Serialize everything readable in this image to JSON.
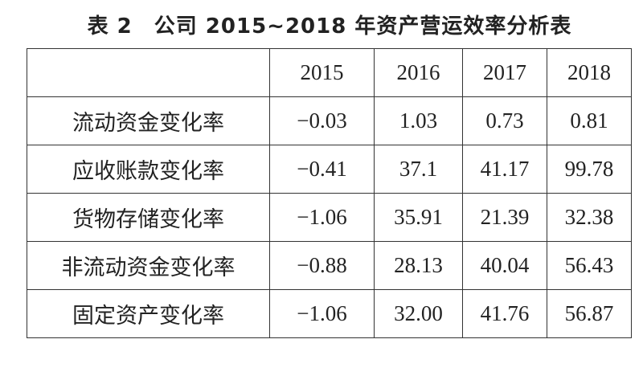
{
  "title": "表 2　公司 2015~2018 年资产营运效率分析表",
  "table": {
    "header": [
      "2015",
      "2016",
      "2017",
      "2018"
    ],
    "rows": [
      [
        "流动资金变化率",
        "−0.03",
        "1.03",
        "0.73",
        "0.81"
      ],
      [
        "应收账款变化率",
        "−0.41",
        "37.1",
        "41.17",
        "99.78"
      ],
      [
        "货物存储变化率",
        "−1.06",
        "35.91",
        "21.39",
        "32.38"
      ],
      [
        "非流动资金变化率",
        "−0.88",
        "28.13",
        "40.04",
        "56.43"
      ],
      [
        "固定资产变化率",
        "−1.06",
        "32.00",
        "41.76",
        "56.87"
      ]
    ]
  }
}
